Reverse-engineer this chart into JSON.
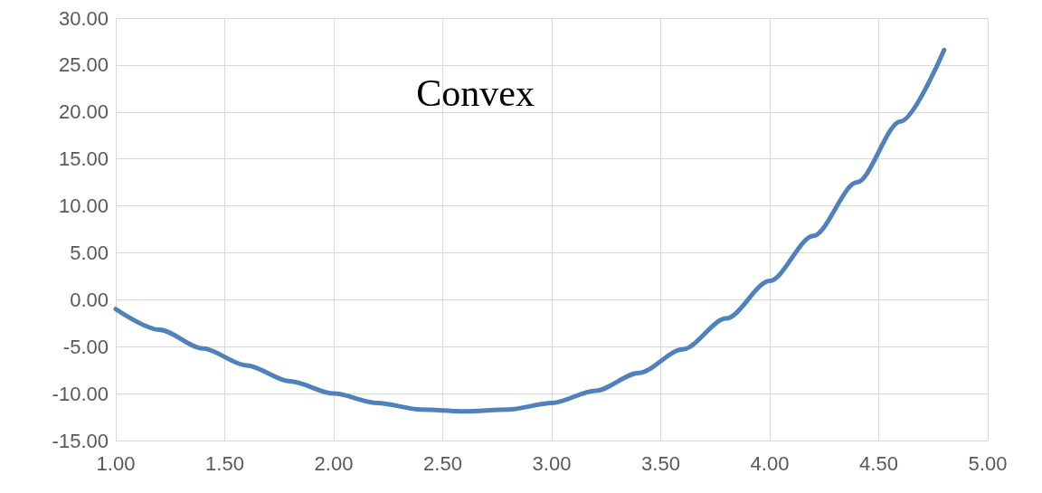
{
  "chart_data": {
    "type": "line",
    "annotations": [
      "Convex"
    ],
    "x": [
      1.0,
      1.2,
      1.4,
      1.6,
      1.8,
      2.0,
      2.2,
      2.4,
      2.6,
      2.8,
      3.0,
      3.2,
      3.4,
      3.6,
      3.8,
      4.0,
      4.2,
      4.4,
      4.6,
      4.8
    ],
    "series": [
      {
        "color": "#4f81bd",
        "values": [
          -1.0,
          -3.2,
          -5.2,
          -7.0,
          -8.7,
          -10.0,
          -11.0,
          -11.7,
          -11.9,
          -11.7,
          -11.0,
          -9.7,
          -7.8,
          -5.3,
          -2.0,
          2.0,
          6.8,
          12.5,
          19.0,
          26.6
        ]
      }
    ],
    "xlim": [
      1,
      5
    ],
    "xticks": [
      {
        "value": 1,
        "label": "1.00"
      },
      {
        "value": 1.5,
        "label": "1.50"
      },
      {
        "value": 2,
        "label": "2.00"
      },
      {
        "value": 2.5,
        "label": "2.50"
      },
      {
        "value": 3,
        "label": "3.00"
      },
      {
        "value": 3.5,
        "label": "3.50"
      },
      {
        "value": 4,
        "label": "4.00"
      },
      {
        "value": 4.5,
        "label": "4.50"
      },
      {
        "value": 5,
        "label": "5.00"
      }
    ],
    "ylim": [
      -15,
      30
    ],
    "yticks": [
      {
        "value": -15,
        "label": "-15.00"
      },
      {
        "value": -10,
        "label": "-10.00"
      },
      {
        "value": -5,
        "label": "-5.00"
      },
      {
        "value": 0,
        "label": "0.00"
      },
      {
        "value": 5,
        "label": "5.00"
      },
      {
        "value": 10,
        "label": "10.00"
      },
      {
        "value": 15,
        "label": "15.00"
      },
      {
        "value": 20,
        "label": "20.00"
      },
      {
        "value": 25,
        "label": "25.00"
      },
      {
        "value": 30,
        "label": "30.00"
      }
    ],
    "grid": true,
    "marker": "none",
    "line_style": "solid"
  }
}
